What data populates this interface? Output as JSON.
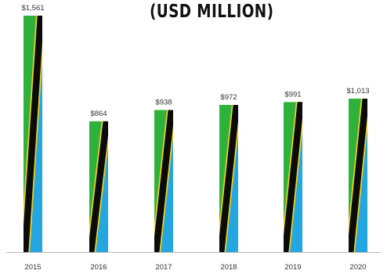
{
  "chart_data": {
    "type": "bar",
    "title": "(USD MILLION)",
    "categories": [
      "2015",
      "2016",
      "2017",
      "2018",
      "2019",
      "2020"
    ],
    "values": [
      1561,
      864,
      938,
      972,
      991,
      1013
    ],
    "value_labels": [
      "$1,561",
      "$864",
      "$938",
      "$972",
      "$991",
      "$1,013"
    ],
    "xlabel": "",
    "ylabel": "",
    "ylim": [
      0,
      1561
    ],
    "grid": false,
    "legend": "none",
    "bar_style": "Tanzania flag pattern",
    "colors": {
      "green": "#2fb23c",
      "blue": "#24a6e0",
      "black": "#0b0b0b",
      "gold": "#f2d21c",
      "axis": "#bbbbbb"
    }
  }
}
